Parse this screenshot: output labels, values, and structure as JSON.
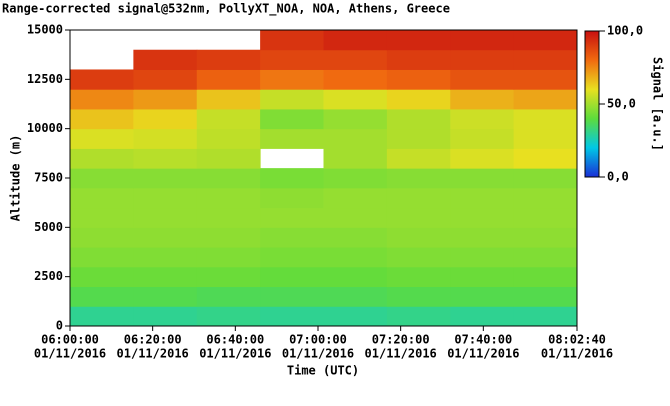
{
  "chart_data": {
    "type": "heatmap",
    "title": "Range-corrected signal@532nm, PollyXT_NOA, NOA, Athens, Greece",
    "x_label": "Time (UTC)",
    "y_label": "Altitude (m)",
    "colorbar_label": "Signal [a.u.]",
    "xlim": [
      "06:00:00",
      "08:02:40"
    ],
    "xticks": [
      {
        "time": "06:00:00",
        "date": "01/11/2016"
      },
      {
        "time": "06:20:00",
        "date": "01/11/2016"
      },
      {
        "time": "06:40:00",
        "date": "01/11/2016"
      },
      {
        "time": "07:00:00",
        "date": "01/11/2016"
      },
      {
        "time": "07:20:00",
        "date": "01/11/2016"
      },
      {
        "time": "07:40:00",
        "date": "01/11/2016"
      },
      {
        "time": "08:02:40",
        "date": "01/11/2016"
      }
    ],
    "ylim": [
      0,
      15000
    ],
    "yticks": [
      0,
      2500,
      5000,
      7500,
      10000,
      12500,
      15000
    ],
    "clim": [
      0,
      100
    ],
    "cticks": [
      {
        "value": 0,
        "label": "0,0"
      },
      {
        "value": 50,
        "label": "50,0"
      },
      {
        "value": 100,
        "label": "100,0"
      }
    ],
    "colormap": [
      "#1a2fd6",
      "#00c8e6",
      "#5ddc3c",
      "#e8e020",
      "#f06a10",
      "#c81010"
    ],
    "x_bins": [
      "06:00:00",
      "06:15:20",
      "06:30:40",
      "06:46:00",
      "07:01:20",
      "07:16:40",
      "07:32:00",
      "07:47:20",
      "08:02:40"
    ],
    "y_bins": [
      0,
      1000,
      2000,
      3000,
      4000,
      5000,
      6000,
      7000,
      8000,
      9000,
      10000,
      11000,
      12000,
      13000,
      14000,
      15000
    ],
    "values": [
      [
        30,
        30,
        31,
        30,
        30,
        31,
        30,
        30
      ],
      [
        38,
        38,
        37,
        37,
        37,
        38,
        38,
        38
      ],
      [
        42,
        42,
        42,
        41,
        41,
        42,
        42,
        42
      ],
      [
        45,
        45,
        45,
        44,
        44,
        45,
        45,
        45
      ],
      [
        47,
        47,
        47,
        46,
        46,
        47,
        47,
        47
      ],
      [
        48,
        48,
        48,
        48,
        48,
        48,
        48,
        48
      ],
      [
        48,
        48,
        48,
        47,
        48,
        48,
        48,
        48
      ],
      [
        46,
        46,
        46,
        44,
        45,
        46,
        46,
        46
      ],
      [
        52,
        53,
        52,
        null,
        50,
        55,
        58,
        60
      ],
      [
        58,
        57,
        54,
        50,
        50,
        52,
        55,
        58
      ],
      [
        65,
        62,
        55,
        45,
        48,
        52,
        56,
        58
      ],
      [
        75,
        72,
        65,
        55,
        58,
        62,
        68,
        70
      ],
      [
        90,
        88,
        82,
        78,
        80,
        82,
        85,
        85
      ],
      [
        null,
        92,
        90,
        88,
        88,
        90,
        90,
        90
      ],
      [
        null,
        null,
        null,
        92,
        95,
        95,
        95,
        95
      ]
    ]
  }
}
